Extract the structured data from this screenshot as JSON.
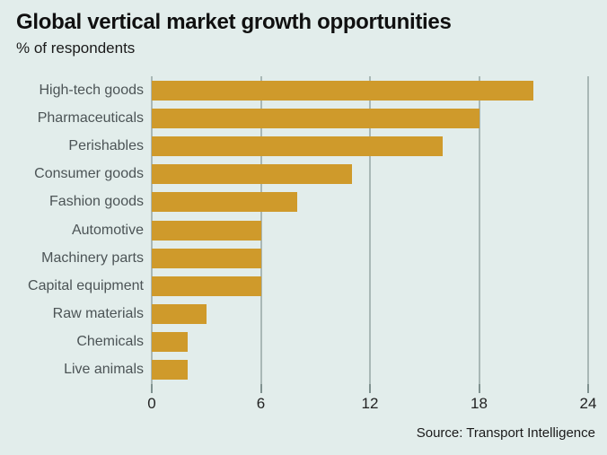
{
  "chart_data": {
    "type": "bar",
    "orientation": "horizontal",
    "title": "Global vertical market growth opportunities",
    "subtitle": "% of respondents",
    "source": "Source: Transport Intelligence",
    "categories": [
      "High-tech goods",
      "Pharmaceuticals",
      "Perishables",
      "Consumer goods",
      "Fashion goods",
      "Automotive",
      "Machinery parts",
      "Capital equipment",
      "Raw materials",
      "Chemicals",
      "Live animals"
    ],
    "values": [
      21,
      18,
      16,
      11,
      8,
      6,
      6,
      6,
      3,
      2,
      2
    ],
    "xlabel": "",
    "ylabel": "",
    "xlim": [
      0,
      24
    ],
    "xticks": [
      0,
      6,
      12,
      18,
      24
    ],
    "grid": "vertical-gridlines",
    "legend": "none",
    "colors": {
      "bar": "#cf9a2b",
      "background": "#e2edeb",
      "gridline": "#a9b8b6",
      "tick": "#7f918f",
      "label_text": "#4c5456",
      "title_text": "#101010"
    }
  }
}
